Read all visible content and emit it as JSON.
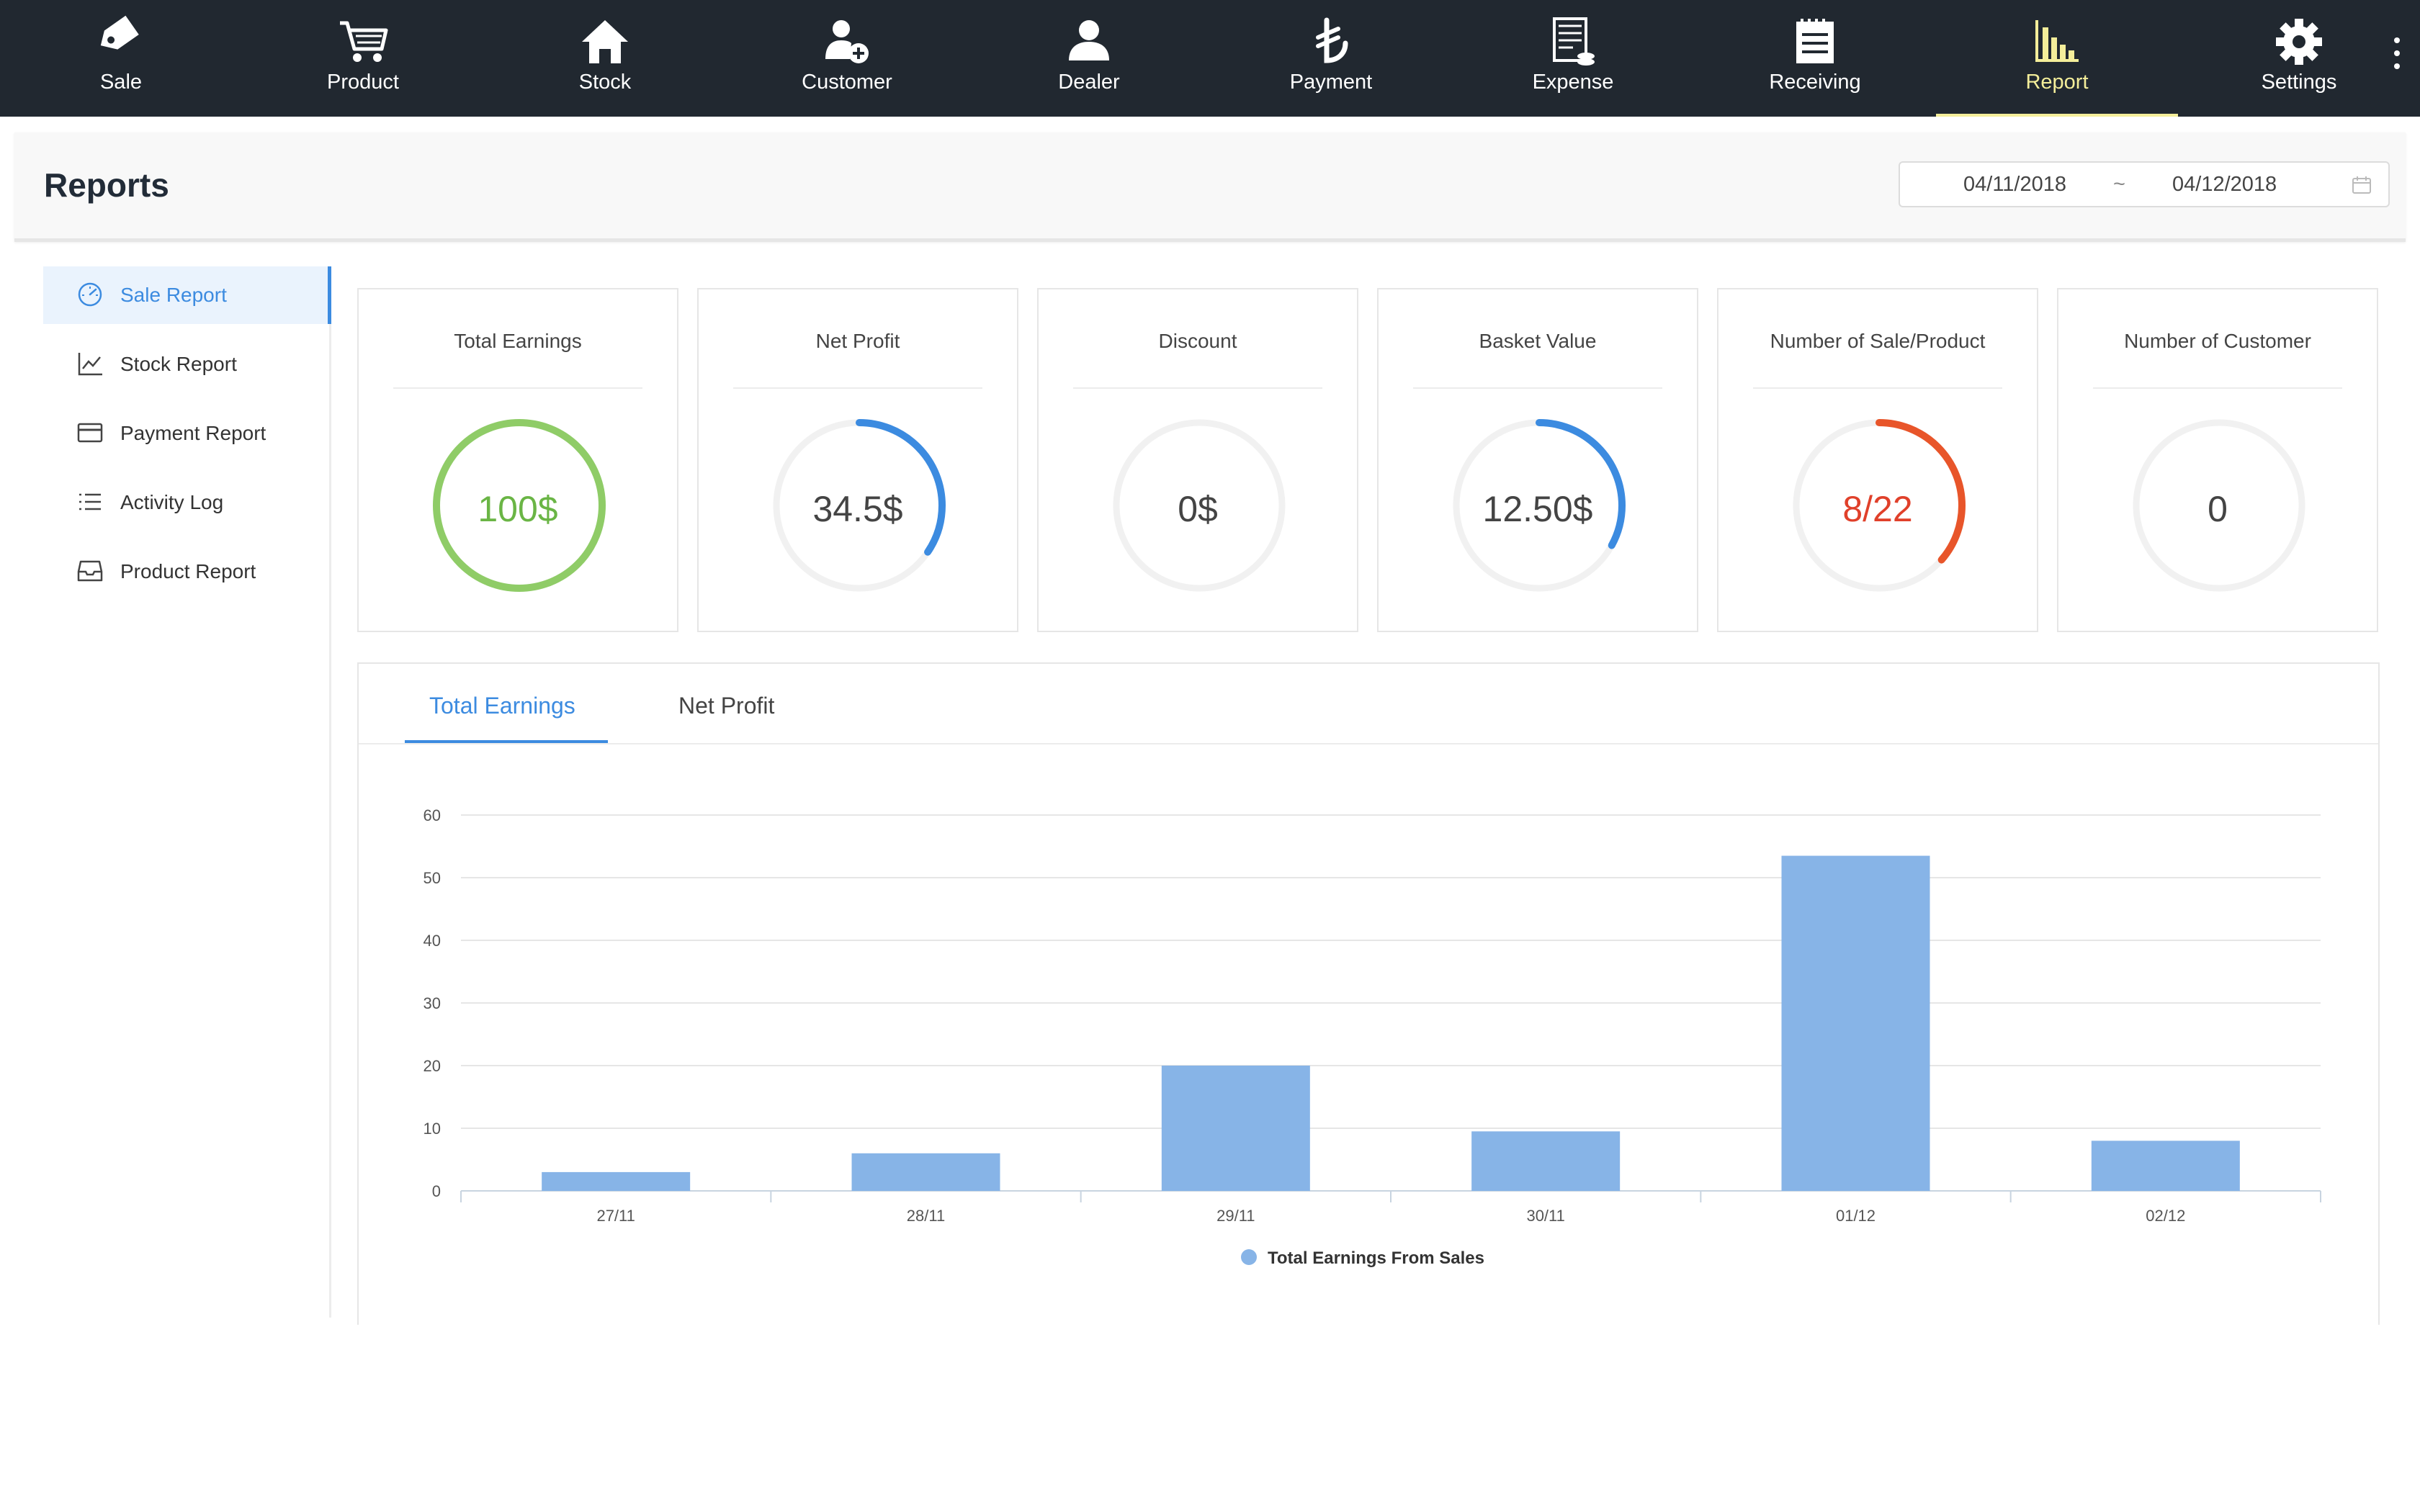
{
  "nav": {
    "items": [
      {
        "label": "Sale",
        "icon": "tag-icon"
      },
      {
        "label": "Product",
        "icon": "cart-icon"
      },
      {
        "label": "Stock",
        "icon": "house-icon"
      },
      {
        "label": "Customer",
        "icon": "add-person-icon"
      },
      {
        "label": "Dealer",
        "icon": "person-icon"
      },
      {
        "label": "Payment",
        "icon": "lira-icon"
      },
      {
        "label": "Expense",
        "icon": "receipt-icon"
      },
      {
        "label": "Receiving",
        "icon": "notepad-icon"
      },
      {
        "label": "Report",
        "icon": "bar-chart-icon",
        "active": true
      },
      {
        "label": "Settings",
        "icon": "gear-icon"
      }
    ],
    "active_color": "#f4ee9a"
  },
  "header": {
    "title": "Reports",
    "date_from": "04/11/2018",
    "date_separator": "~",
    "date_to": "04/12/2018"
  },
  "sidebar": {
    "items": [
      {
        "label": "Sale Report",
        "icon": "dashboard-gauge-icon",
        "active": true
      },
      {
        "label": "Stock Report",
        "icon": "line-chart-icon"
      },
      {
        "label": "Payment Report",
        "icon": "credit-card-icon"
      },
      {
        "label": "Activity Log",
        "icon": "list-icon"
      },
      {
        "label": "Product Report",
        "icon": "inbox-icon"
      }
    ]
  },
  "cards": [
    {
      "title": "Total Earnings",
      "value": "100$",
      "progress": 1.0,
      "color": "#8fcc67",
      "value_color": "#6ab545"
    },
    {
      "title": "Net Profit",
      "value": "34.5$",
      "progress": 0.345,
      "color": "#3c8be0",
      "value_color": "#444444"
    },
    {
      "title": "Discount",
      "value": "0$",
      "progress": 0,
      "color": "#3c8be0",
      "value_color": "#444444"
    },
    {
      "title": "Basket Value",
      "value": "12.50$",
      "progress": 0.33,
      "color": "#3c8be0",
      "value_color": "#444444"
    },
    {
      "title": "Number of Sale/Product",
      "value": "8/22",
      "progress": 0.364,
      "color": "#e8552a",
      "value_color": "#e0402a"
    },
    {
      "title": "Number of Customer",
      "value": "0",
      "progress": 0,
      "color": "#3c8be0",
      "value_color": "#444444"
    }
  ],
  "tabs": [
    {
      "label": "Total Earnings",
      "active": true
    },
    {
      "label": "Net Profit"
    }
  ],
  "chart_data": {
    "type": "bar",
    "categories": [
      "27/11",
      "28/11",
      "29/11",
      "30/11",
      "01/12",
      "02/12"
    ],
    "series": [
      {
        "name": "Total Earnings From Sales",
        "values": [
          3,
          6,
          20,
          9.5,
          53.5,
          8
        ],
        "color": "#87b4e7"
      }
    ],
    "ylim": [
      0,
      60
    ],
    "yticks": [
      0,
      10,
      20,
      30,
      40,
      50,
      60
    ],
    "grid": true,
    "legend": "bottom-center"
  }
}
